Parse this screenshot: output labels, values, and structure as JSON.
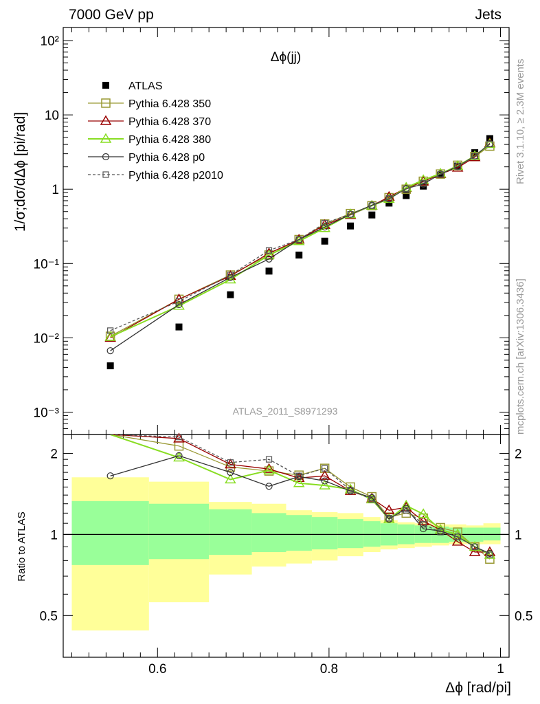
{
  "header": {
    "left": "7000 GeV pp",
    "right": "Jets"
  },
  "side_labels": {
    "upper": "Rivet 3.1.10, ≥ 2.3M events",
    "lower": "mcplots.cern.ch [arXiv:1306.3436]"
  },
  "colors": {
    "atlas": "#000000",
    "p350": "#999933",
    "p370": "#990000",
    "p380": "#88dd22",
    "p0": "#333333",
    "p2010": "#555555",
    "band_inner": "#99ff99",
    "band_outer": "#ffff99"
  },
  "chart_data": [
    {
      "type": "scatter",
      "title": "Δϕ(jj)",
      "watermark": "ATLAS_2011_S8971293",
      "ylabel": "1/σ;dσ/dΔϕ [pi/rad]",
      "y_scale": "log",
      "ylim": [
        0.0005,
        150
      ],
      "xlim": [
        0.5,
        1.0
      ],
      "y_tick_labels": [
        "10⁻³",
        "10⁻²",
        "10⁻¹",
        "1",
        "10",
        "10²"
      ],
      "legend_position": "top-left",
      "x": [
        0.545,
        0.625,
        0.685,
        0.73,
        0.765,
        0.795,
        0.825,
        0.85,
        0.87,
        0.89,
        0.91,
        0.93,
        0.95,
        0.97,
        0.9875
      ],
      "series": [
        {
          "name": "ATLAS",
          "key": "atlas",
          "values": [
            0.0042,
            0.014,
            0.038,
            0.079,
            0.13,
            0.2,
            0.32,
            0.45,
            0.65,
            0.82,
            1.1,
            1.55,
            2.05,
            3.1,
            4.8
          ]
        },
        {
          "name": "Pythia 6.428 350",
          "key": "p350",
          "values": [
            0.0105,
            0.033,
            0.07,
            0.13,
            0.21,
            0.34,
            0.47,
            0.6,
            0.77,
            1.0,
            1.28,
            1.6,
            2.1,
            2.75,
            3.8
          ]
        },
        {
          "name": "Pythia 6.428 370",
          "key": "p370",
          "values": [
            0.01,
            0.033,
            0.068,
            0.137,
            0.21,
            0.33,
            0.45,
            0.6,
            0.79,
            1.04,
            1.27,
            1.6,
            1.95,
            2.7,
            4.15
          ]
        },
        {
          "name": "Pythia 6.428 380",
          "key": "p380",
          "values": [
            0.0103,
            0.027,
            0.061,
            0.13,
            0.2,
            0.3,
            0.46,
            0.6,
            0.74,
            1.05,
            1.33,
            1.62,
            2.05,
            2.8,
            4.05
          ]
        },
        {
          "name": "Pythia 6.428 p0",
          "key": "p0",
          "values": [
            0.0067,
            0.028,
            0.065,
            0.115,
            0.21,
            0.31,
            0.46,
            0.61,
            0.74,
            1.02,
            1.17,
            1.6,
            2.02,
            2.8,
            4.1
          ]
        },
        {
          "name": "Pythia 6.428 p2010",
          "key": "p2010",
          "values": [
            0.0125,
            0.031,
            0.07,
            0.15,
            0.21,
            0.35,
            0.46,
            0.6,
            0.75,
            1.01,
            1.2,
            1.58,
            2.02,
            2.8,
            4.05
          ]
        }
      ]
    },
    {
      "type": "line",
      "ylabel": "Ratio to ATLAS",
      "xlabel": "Δϕ [rad/pi]",
      "ylim": [
        0.35,
        2.35
      ],
      "xlim": [
        0.49,
        1.01
      ],
      "x_tick_labels": [
        "0.6",
        "0.8",
        "1"
      ],
      "y_tick_labels": [
        "0.5",
        "1",
        "2"
      ],
      "bands": {
        "edges": [
          0.5,
          0.59,
          0.66,
          0.71,
          0.75,
          0.78,
          0.81,
          0.84,
          0.86,
          0.88,
          0.9,
          0.92,
          0.94,
          0.96,
          0.98,
          1.0
        ],
        "inner_lo": [
          0.77,
          0.81,
          0.84,
          0.86,
          0.87,
          0.88,
          0.89,
          0.9,
          0.91,
          0.92,
          0.93,
          0.93,
          0.94,
          0.94,
          0.95
        ],
        "inner_hi": [
          1.33,
          1.3,
          1.24,
          1.2,
          1.18,
          1.16,
          1.14,
          1.12,
          1.1,
          1.09,
          1.08,
          1.07,
          1.06,
          1.06,
          1.06
        ],
        "outer_lo": [
          0.44,
          0.56,
          0.71,
          0.76,
          0.78,
          0.8,
          0.83,
          0.86,
          0.88,
          0.89,
          0.9,
          0.91,
          0.92,
          0.92,
          0.92
        ],
        "outer_hi": [
          1.63,
          1.57,
          1.32,
          1.3,
          1.23,
          1.21,
          1.2,
          1.16,
          1.13,
          1.11,
          1.1,
          1.09,
          1.09,
          1.08,
          1.1
        ]
      },
      "x": [
        0.545,
        0.625,
        0.685,
        0.73,
        0.765,
        0.795,
        0.825,
        0.85,
        0.87,
        0.89,
        0.91,
        0.93,
        0.95,
        0.97,
        0.9875
      ],
      "series": [
        {
          "name": "Pythia 6.428 350",
          "key": "p350",
          "values": [
            2.39,
            2.13,
            1.78,
            1.72,
            1.66,
            1.76,
            1.5,
            1.38,
            1.16,
            1.2,
            1.15,
            1.06,
            1.02,
            0.9,
            0.81
          ]
        },
        {
          "name": "Pythia 6.428 370",
          "key": "p370",
          "values": [
            2.45,
            2.27,
            1.82,
            1.75,
            1.62,
            1.65,
            1.45,
            1.36,
            1.23,
            1.26,
            1.12,
            1.04,
            0.94,
            0.86,
            0.86
          ]
        },
        {
          "name": "Pythia 6.428 380",
          "key": "p380",
          "values": [
            2.45,
            1.93,
            1.6,
            1.73,
            1.55,
            1.52,
            1.47,
            1.35,
            1.14,
            1.28,
            1.19,
            1.04,
            1.0,
            0.9,
            0.84
          ]
        },
        {
          "name": "Pythia 6.428 p0",
          "key": "p0",
          "values": [
            1.65,
            1.96,
            1.7,
            1.51,
            1.64,
            1.58,
            1.45,
            1.37,
            1.14,
            1.25,
            1.05,
            1.03,
            0.98,
            0.9,
            0.85
          ]
        },
        {
          "name": "Pythia 6.428 p2010",
          "key": "p2010",
          "values": [
            2.98,
            2.3,
            1.85,
            1.9,
            1.65,
            1.76,
            1.46,
            1.35,
            1.15,
            1.23,
            1.09,
            1.02,
            0.98,
            0.9,
            0.84
          ]
        }
      ]
    }
  ]
}
